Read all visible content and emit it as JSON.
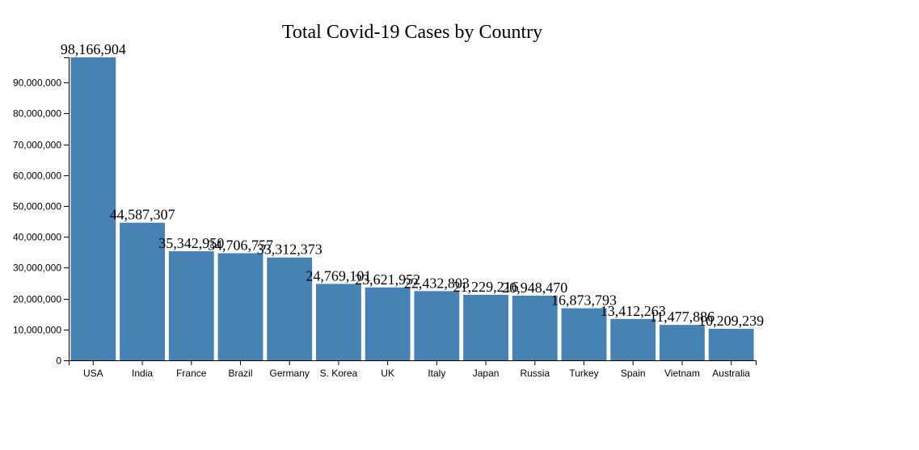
{
  "chart_data": {
    "type": "bar",
    "title": "Total Covid-19 Cases by Country",
    "xlabel": "",
    "ylabel": "",
    "categories": [
      "USA",
      "India",
      "France",
      "Brazil",
      "Germany",
      "S. Korea",
      "UK",
      "Italy",
      "Japan",
      "Russia",
      "Turkey",
      "Spain",
      "Vietnam",
      "Australia"
    ],
    "values": [
      98166904,
      44587307,
      35342950,
      34706757,
      33312373,
      24769101,
      23621952,
      22432803,
      21229216,
      20948470,
      16873793,
      13412263,
      11477886,
      10209239
    ],
    "value_labels": [
      "98,166,904",
      "44,587,307",
      "35,342,950",
      "34,706,757",
      "33,312,373",
      "24,769,101",
      "23,621,952",
      "22,432,803",
      "21,229,216",
      "20,948,470",
      "16,873,793",
      "13,412,263",
      "11,477,886",
      "10,209,239"
    ],
    "ylim": [
      0,
      98166904
    ],
    "y_ticks": [
      0,
      10000000,
      20000000,
      30000000,
      40000000,
      50000000,
      60000000,
      70000000,
      80000000,
      90000000
    ],
    "y_tick_labels": [
      "0",
      "10,000,000",
      "20,000,000",
      "30,000,000",
      "40,000,000",
      "50,000,000",
      "60,000,000",
      "70,000,000",
      "80,000,000",
      "90,000,000"
    ],
    "bar_color": "#4682b4",
    "grid": false,
    "legend": "none"
  }
}
